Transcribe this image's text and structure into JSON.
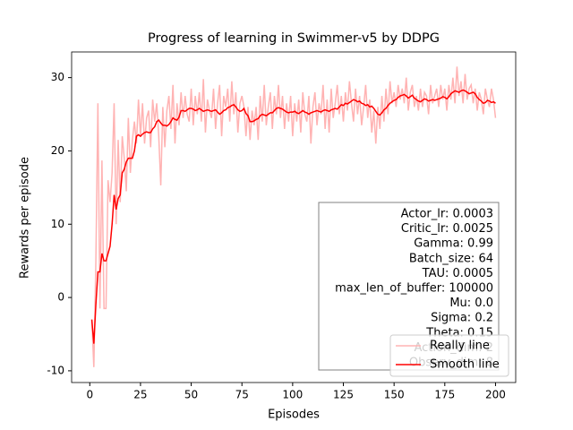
{
  "chart_data": {
    "type": "line",
    "title": "Progress of learning in Swimmer-v5 by DDPG",
    "x_label": "Episodes",
    "y_label": "Rewards per episode",
    "x": [
      1,
      2,
      3,
      4,
      5,
      6,
      7,
      8,
      9,
      10,
      11,
      12,
      13,
      14,
      15,
      16,
      17,
      18,
      19,
      20,
      21,
      22,
      23,
      24,
      25,
      26,
      27,
      28,
      29,
      30,
      31,
      32,
      33,
      34,
      35,
      36,
      37,
      38,
      39,
      40,
      41,
      42,
      43,
      44,
      45,
      46,
      47,
      48,
      49,
      50,
      51,
      52,
      53,
      54,
      55,
      56,
      57,
      58,
      59,
      60,
      61,
      62,
      63,
      64,
      65,
      66,
      67,
      68,
      69,
      70,
      71,
      72,
      73,
      74,
      75,
      76,
      77,
      78,
      79,
      80,
      81,
      82,
      83,
      84,
      85,
      86,
      87,
      88,
      89,
      90,
      91,
      92,
      93,
      94,
      95,
      96,
      97,
      98,
      99,
      100,
      101,
      102,
      103,
      104,
      105,
      106,
      107,
      108,
      109,
      110,
      111,
      112,
      113,
      114,
      115,
      116,
      117,
      118,
      119,
      120,
      121,
      122,
      123,
      124,
      125,
      126,
      127,
      128,
      129,
      130,
      131,
      132,
      133,
      134,
      135,
      136,
      137,
      138,
      139,
      140,
      141,
      142,
      143,
      144,
      145,
      146,
      147,
      148,
      149,
      150,
      151,
      152,
      153,
      154,
      155,
      156,
      157,
      158,
      159,
      160,
      161,
      162,
      163,
      164,
      165,
      166,
      167,
      168,
      169,
      170,
      171,
      172,
      173,
      174,
      175,
      176,
      177,
      178,
      179,
      180,
      181,
      182,
      183,
      184,
      185,
      186,
      187,
      188,
      189,
      190,
      191,
      192,
      193,
      194,
      195,
      196,
      197,
      198,
      199,
      200
    ],
    "series": [
      {
        "name": "Really line",
        "color": "#ffb3b3",
        "values": [
          -3.0,
          -9.5,
          5.0,
          26.5,
          -1.5,
          18.7,
          -1.5,
          -1.5,
          16.0,
          13.0,
          17.0,
          26.5,
          10.0,
          21.5,
          13.0,
          22.0,
          19.0,
          14.5,
          24.5,
          17.0,
          21.5,
          24.0,
          21.0,
          27.0,
          22.0,
          26.5,
          21.0,
          24.5,
          25.5,
          20.5,
          27.0,
          24.0,
          26.5,
          22.0,
          15.3,
          26.0,
          20.5,
          25.5,
          27.5,
          23.0,
          29.0,
          21.0,
          26.5,
          23.5,
          28.0,
          24.5,
          27.5,
          25.0,
          24.0,
          28.5,
          23.5,
          27.5,
          25.0,
          28.0,
          24.0,
          29.8,
          22.5,
          27.0,
          25.5,
          24.5,
          28.5,
          23.0,
          26.5,
          29.0,
          22.0,
          27.5,
          26.0,
          28.5,
          24.0,
          29.5,
          25.0,
          28.0,
          22.5,
          26.5,
          27.5,
          26.0,
          22.0,
          26.0,
          21.5,
          25.5,
          23.5,
          26.0,
          21.5,
          27.5,
          24.0,
          29.0,
          23.5,
          26.0,
          28.0,
          23.0,
          27.5,
          25.0,
          29.0,
          24.5,
          27.5,
          23.0,
          26.5,
          24.0,
          27.5,
          22.0,
          26.5,
          24.0,
          27.0,
          22.5,
          28.0,
          25.0,
          24.0,
          27.5,
          21.0,
          26.0,
          28.0,
          23.5,
          26.5,
          25.0,
          29.0,
          23.0,
          27.0,
          22.5,
          28.5,
          24.5,
          26.5,
          29.0,
          25.0,
          27.5,
          24.0,
          28.0,
          25.5,
          29.5,
          26.5,
          24.0,
          28.5,
          25.0,
          27.5,
          23.5,
          26.0,
          29.0,
          24.5,
          27.0,
          22.5,
          25.5,
          21.0,
          26.0,
          23.0,
          27.5,
          24.0,
          28.5,
          25.0,
          29.5,
          26.5,
          28.0,
          26.0,
          29.0,
          27.0,
          28.5,
          26.5,
          30.0,
          25.5,
          28.0,
          29.0,
          26.0,
          27.5,
          25.5,
          28.5,
          26.0,
          28.0,
          27.5,
          25.0,
          29.0,
          26.5,
          27.5,
          28.5,
          26.0,
          29.0,
          27.0,
          28.5,
          25.5,
          29.0,
          27.0,
          30.0,
          26.5,
          31.5,
          27.5,
          29.5,
          26.5,
          30.5,
          27.0,
          28.5,
          29.0,
          26.5,
          28.5,
          25.5,
          28.0,
          27.0,
          25.0,
          28.5,
          27.0,
          26.0,
          28.5,
          27.0,
          24.5
        ]
      },
      {
        "name": "Smooth line",
        "color": "#ff0000",
        "values": [
          -3.0,
          -6.3,
          -1.0,
          3.5,
          3.5,
          6.0,
          5.0,
          5.0,
          6.0,
          7.0,
          10.0,
          14.0,
          12.0,
          13.5,
          14.0,
          17.0,
          17.5,
          18.5,
          19.0,
          19.0,
          19.0,
          20.0,
          22.0,
          22.2,
          22.0,
          22.3,
          22.5,
          22.6,
          22.5,
          22.5,
          23.0,
          23.3,
          24.0,
          24.2,
          23.8,
          23.5,
          23.5,
          23.4,
          23.6,
          24.0,
          24.5,
          24.3,
          24.2,
          24.6,
          25.5,
          25.5,
          25.4,
          25.6,
          25.8,
          25.8,
          25.7,
          25.5,
          25.6,
          25.8,
          25.6,
          25.4,
          25.5,
          25.6,
          25.5,
          25.4,
          25.5,
          25.6,
          25.3,
          25.0,
          25.2,
          25.5,
          25.6,
          25.9,
          26.0,
          26.2,
          26.3,
          26.0,
          25.6,
          25.4,
          25.5,
          25.8,
          25.1,
          24.8,
          24.0,
          24.0,
          24.1,
          24.3,
          24.4,
          24.8,
          25.0,
          24.9,
          24.8,
          25.0,
          25.2,
          25.2,
          25.5,
          25.8,
          25.9,
          25.8,
          25.7,
          25.5,
          25.3,
          25.2,
          25.3,
          25.3,
          25.4,
          25.2,
          25.1,
          25.3,
          25.5,
          25.3,
          25.2,
          25.0,
          25.2,
          25.3,
          25.4,
          25.5,
          25.4,
          25.3,
          25.5,
          25.6,
          25.5,
          25.4,
          25.6,
          25.7,
          25.8,
          25.7,
          26.0,
          26.3,
          26.2,
          26.5,
          26.4,
          26.6,
          26.8,
          27.0,
          26.9,
          26.7,
          26.8,
          26.5,
          26.4,
          26.2,
          26.3,
          26.0,
          26.1,
          25.8,
          25.4,
          25.0,
          24.9,
          25.2,
          25.6,
          25.8,
          26.2,
          26.5,
          26.7,
          26.9,
          27.0,
          27.3,
          27.5,
          27.6,
          27.7,
          27.5,
          27.2,
          27.4,
          27.6,
          27.2,
          27.0,
          26.8,
          26.7,
          26.9,
          27.1,
          27.0,
          26.8,
          26.9,
          27.0,
          26.9,
          27.0,
          27.1,
          27.2,
          27.4,
          27.3,
          27.1,
          27.4,
          27.8,
          28.0,
          28.2,
          28.1,
          28.0,
          28.2,
          28.3,
          28.2,
          28.0,
          27.8,
          27.9,
          28.0,
          27.8,
          27.3,
          27.0,
          26.8,
          26.5,
          26.6,
          26.9,
          26.8,
          26.6,
          26.7,
          26.5
        ]
      }
    ],
    "xlim": [
      -8.95,
      209.95
    ],
    "ylim": [
      -11.6,
      33.5
    ],
    "xticks": [
      0,
      25,
      50,
      75,
      100,
      125,
      150,
      175,
      200
    ],
    "yticks": [
      -10,
      0,
      10,
      20,
      30
    ],
    "annotation": [
      "Actor_lr: 0.0003",
      "Critic_lr: 0.0025",
      "Gamma: 0.99",
      "Batch_size: 64",
      "TAU: 0.0005",
      "max_len_of_buffer: 100000",
      "Mu: 0.0",
      "Sigma: 0.2",
      "Theta: 0.15",
      "Action_dim: 2",
      "Observ_dim: 8"
    ],
    "legend_loc": "lower right"
  }
}
